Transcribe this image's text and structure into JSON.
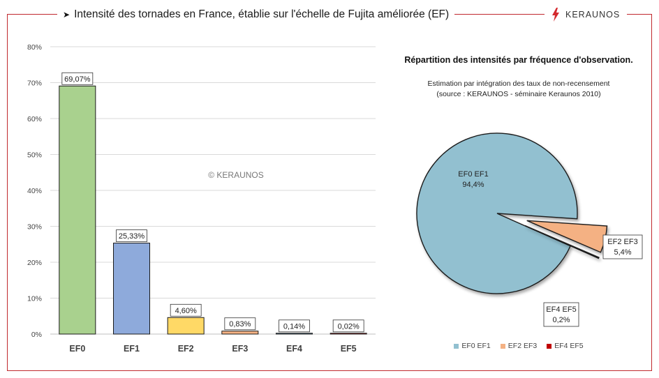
{
  "header": {
    "title": "Intensité des tornades en France, établie sur l'échelle de Fujita améliorée (EF)",
    "logo_text": "KERAUNOS"
  },
  "watermark": "© KERAUNOS",
  "chart_data": [
    {
      "type": "bar",
      "categories": [
        "EF0",
        "EF1",
        "EF2",
        "EF3",
        "EF4",
        "EF5"
      ],
      "values": [
        69.07,
        25.33,
        4.6,
        0.83,
        0.14,
        0.02
      ],
      "data_labels": [
        "69,07%",
        "25,33%",
        "4,60%",
        "0,83%",
        "0,14%",
        "0,02%"
      ],
      "colors": [
        "#a9d18e",
        "#8eaadb",
        "#ffd966",
        "#f4b183",
        "#5b9bd5",
        "#ff0000"
      ],
      "ylim": [
        0,
        80
      ],
      "yticks": [
        "0%",
        "10%",
        "20%",
        "30%",
        "40%",
        "50%",
        "60%",
        "70%",
        "80%"
      ],
      "grid": true
    },
    {
      "type": "pie",
      "title": "Répartition des intensités par fréquence d'observation.",
      "subtitle_lines": [
        "Estimation par intégration des taux de non-recensement",
        "(source : KERAUNOS - séminaire Keraunos 2010)"
      ],
      "slices": [
        {
          "label": "EF0 EF1",
          "value": 94.4,
          "value_label": "94,4%",
          "color": "#92c0d0"
        },
        {
          "label": "EF2 EF3",
          "value": 5.4,
          "value_label": "5,4%",
          "color": "#f4b183"
        },
        {
          "label": "EF4 EF5",
          "value": 0.2,
          "value_label": "0,2%",
          "color": "#c00000"
        }
      ],
      "legend_position": "bottom"
    }
  ]
}
